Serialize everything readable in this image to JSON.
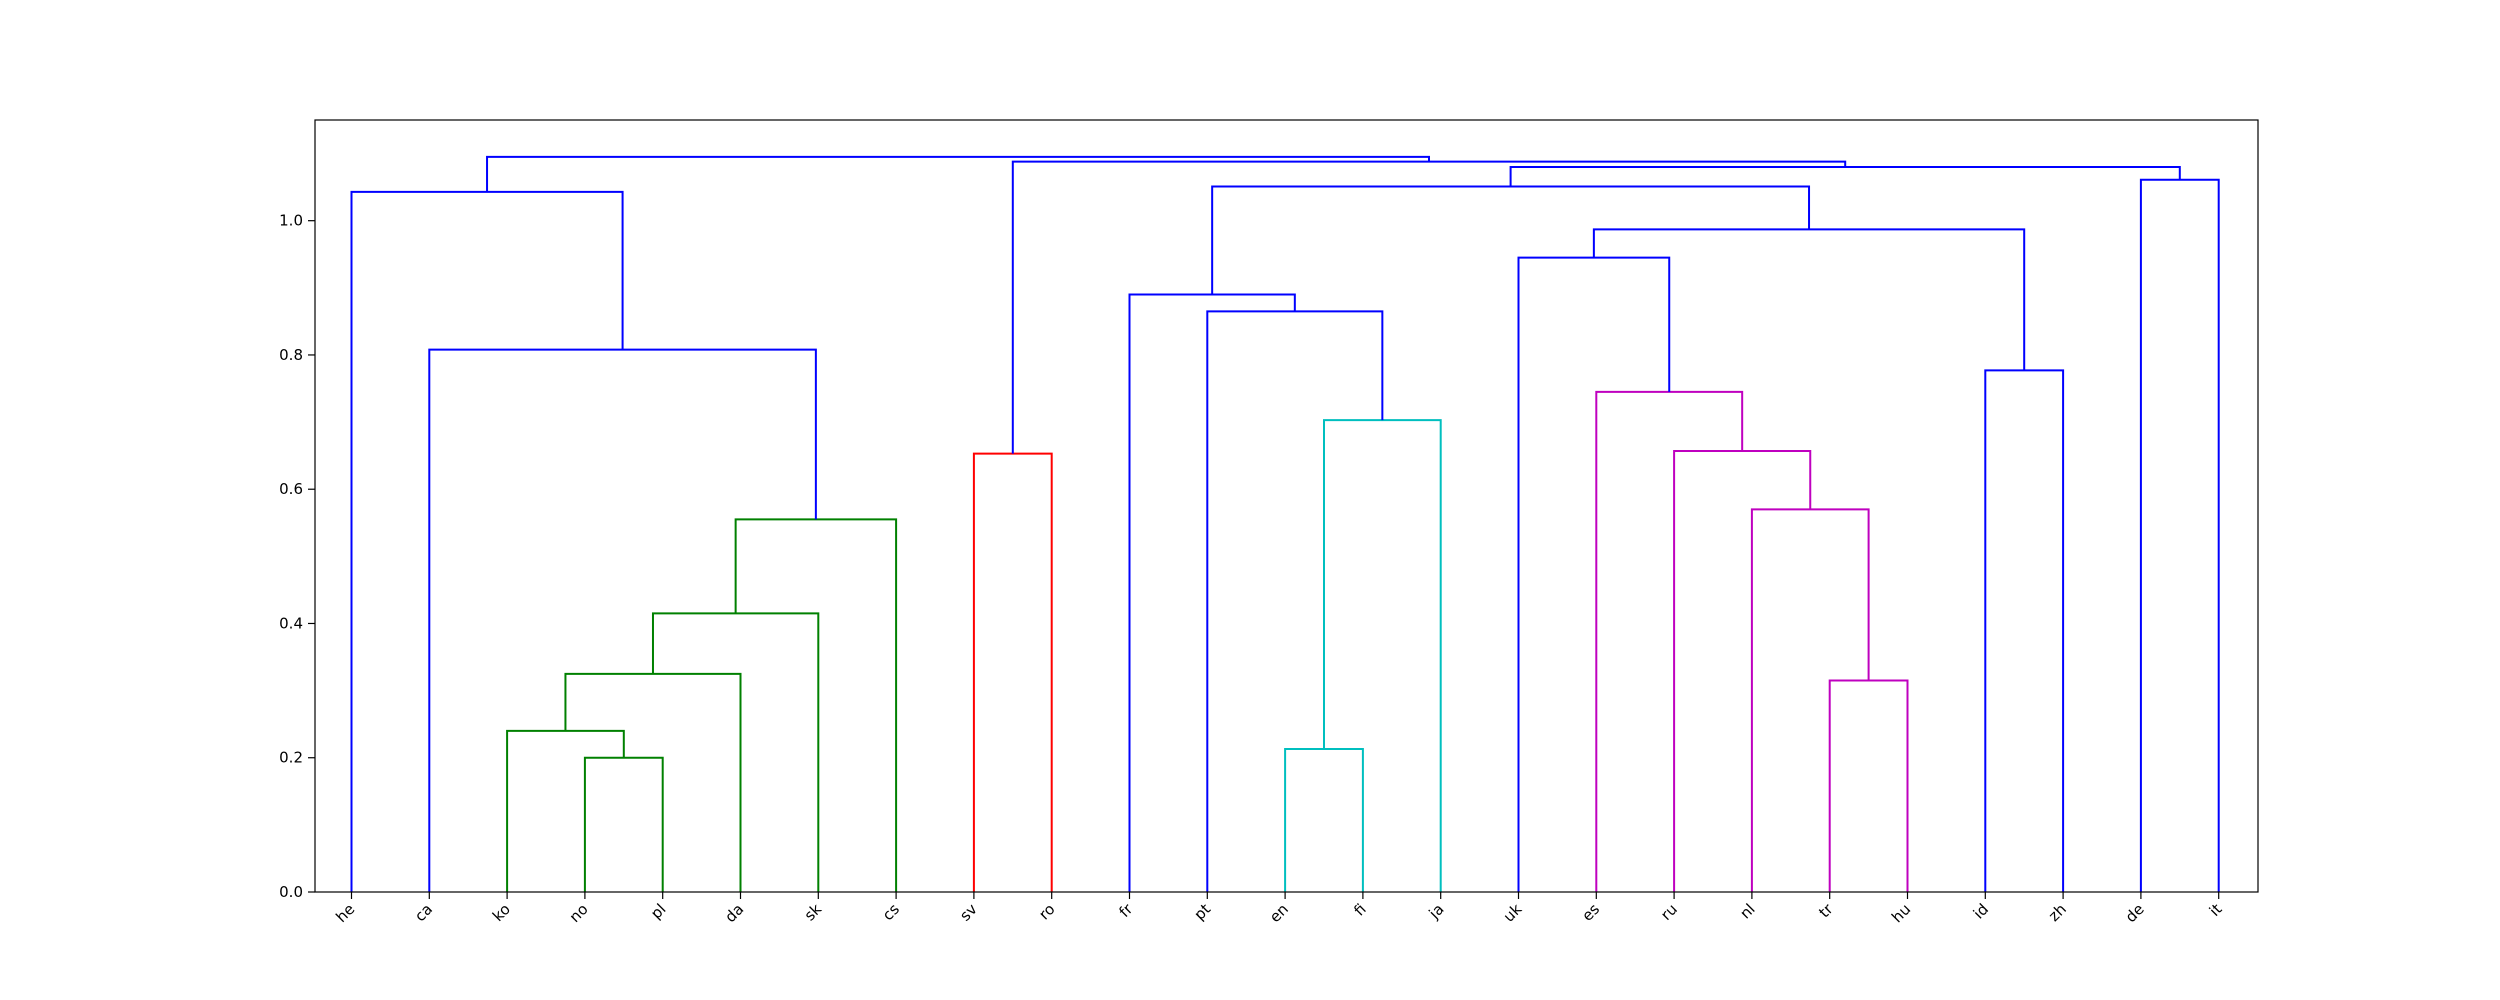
{
  "chart_data": {
    "type": "dendrogram",
    "title": "",
    "xlabel": "",
    "ylabel": "",
    "ylim": [
      0,
      1.15
    ],
    "yticks": [
      "0.0",
      "0.2",
      "0.4",
      "0.6",
      "0.8",
      "1.0"
    ],
    "leaves": [
      "he",
      "ca",
      "ko",
      "no",
      "pl",
      "da",
      "sk",
      "cs",
      "sv",
      "ro",
      "fr",
      "pt",
      "en",
      "fi",
      "ja",
      "uk",
      "es",
      "ru",
      "nl",
      "tr",
      "hu",
      "id",
      "zh",
      "de",
      "it"
    ],
    "merges": [
      {
        "left": [
          3,
          0
        ],
        "right": [
          4,
          0
        ],
        "height": 0.2,
        "color": "#008000"
      },
      {
        "left": [
          2,
          0
        ],
        "right": [
          3.5,
          0.2
        ],
        "height": 0.24,
        "color": "#008000"
      },
      {
        "left": [
          2.75,
          0.24
        ],
        "right": [
          5,
          0
        ],
        "height": 0.325,
        "color": "#008000"
      },
      {
        "left": [
          3.875,
          0.325
        ],
        "right": [
          6,
          0
        ],
        "height": 0.415,
        "color": "#008000"
      },
      {
        "left": [
          4.9375,
          0.415
        ],
        "right": [
          7,
          0
        ],
        "height": 0.555,
        "color": "#008000"
      },
      {
        "left": [
          1,
          0
        ],
        "right": [
          5.96875,
          0.555
        ],
        "height": 0.808,
        "color": "#0000ff"
      },
      {
        "left": [
          0,
          0
        ],
        "right": [
          3.484375,
          0.808
        ],
        "height": 1.043,
        "color": "#0000ff"
      },
      {
        "left": [
          8,
          0
        ],
        "right": [
          9,
          0
        ],
        "height": 0.653,
        "color": "#ff0000"
      },
      {
        "left": [
          12,
          0
        ],
        "right": [
          13,
          0
        ],
        "height": 0.213,
        "color": "#00bfbf"
      },
      {
        "left": [
          12.5,
          0.213
        ],
        "right": [
          14,
          0
        ],
        "height": 0.703,
        "color": "#00bfbf"
      },
      {
        "left": [
          11,
          0
        ],
        "right": [
          13.25,
          0.703
        ],
        "height": 0.865,
        "color": "#0000ff"
      },
      {
        "left": [
          10,
          0
        ],
        "right": [
          12.125,
          0.865
        ],
        "height": 0.89,
        "color": "#0000ff"
      },
      {
        "left": [
          19,
          0
        ],
        "right": [
          20,
          0
        ],
        "height": 0.315,
        "color": "#bf00bf"
      },
      {
        "left": [
          18,
          0
        ],
        "right": [
          19.5,
          0.315
        ],
        "height": 0.57,
        "color": "#bf00bf"
      },
      {
        "left": [
          17,
          0
        ],
        "right": [
          18.75,
          0.57
        ],
        "height": 0.657,
        "color": "#bf00bf"
      },
      {
        "left": [
          16,
          0
        ],
        "right": [
          17.875,
          0.657
        ],
        "height": 0.745,
        "color": "#bf00bf"
      },
      {
        "left": [
          15,
          0
        ],
        "right": [
          16.9375,
          0.745
        ],
        "height": 0.945,
        "color": "#0000ff"
      },
      {
        "left": [
          21,
          0
        ],
        "right": [
          22,
          0
        ],
        "height": 0.777,
        "color": "#0000ff"
      },
      {
        "left": [
          15.96875,
          0.945
        ],
        "right": [
          21.5,
          0.777
        ],
        "height": 0.987,
        "color": "#0000ff"
      },
      {
        "left": [
          11.0625,
          0.89
        ],
        "right": [
          18.734375,
          0.987
        ],
        "height": 1.051,
        "color": "#0000ff"
      },
      {
        "left": [
          23,
          0
        ],
        "right": [
          24,
          0
        ],
        "height": 1.061,
        "color": "#0000ff"
      },
      {
        "left": [
          14.8984375,
          1.051
        ],
        "right": [
          23.5,
          1.061
        ],
        "height": 1.08,
        "color": "#0000ff"
      },
      {
        "left": [
          8.5,
          0.653
        ],
        "right": [
          19.19921875,
          1.08
        ],
        "height": 1.088,
        "color": "#0000ff"
      },
      {
        "left": [
          1.7421875,
          1.043
        ],
        "right": [
          13.849609375,
          1.088
        ],
        "height": 1.095,
        "color": "#0000ff"
      }
    ]
  }
}
